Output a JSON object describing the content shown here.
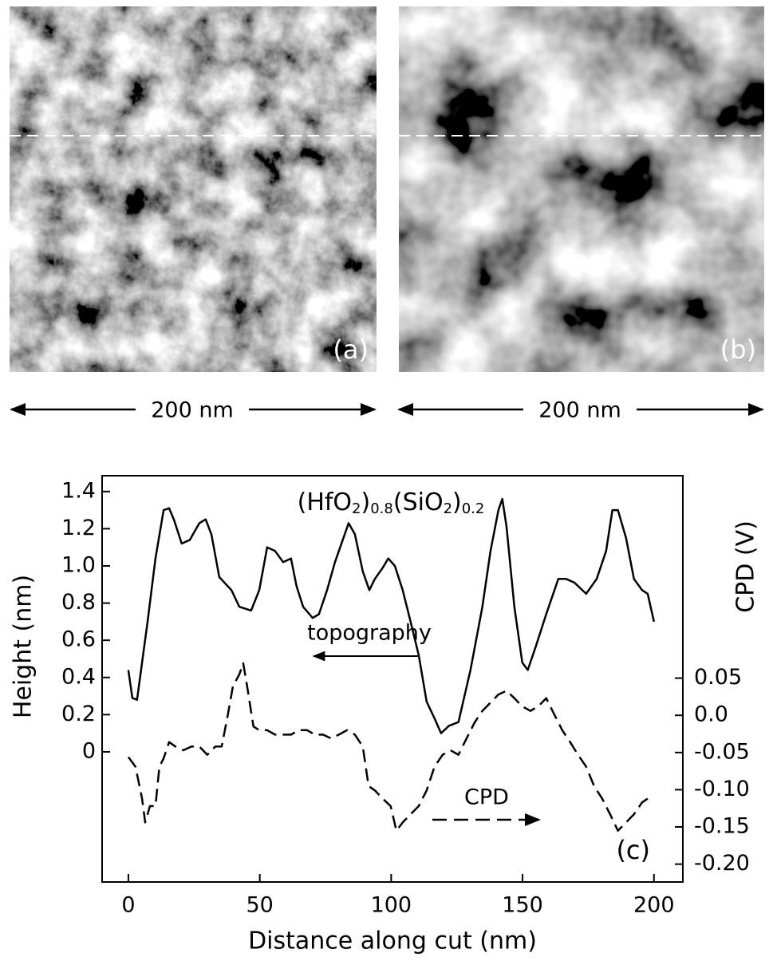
{
  "panels": [
    {
      "label": "(a)",
      "scale": "200 nm"
    },
    {
      "label": "(b)",
      "scale": "200 nm"
    }
  ],
  "chart_data": {
    "type": "line",
    "formula": [
      "(HfO",
      "2",
      ")",
      "0.8",
      "(SiO",
      "2",
      ")",
      "0.2"
    ],
    "panel_label": "(c)",
    "xlabel": "Distance along cut (nm)",
    "ylabel": "Height (nm)",
    "y2label": "CPD (V)",
    "xlim": [
      -10,
      211
    ],
    "xticks": [
      0,
      50,
      100,
      150,
      200
    ],
    "ylim": [
      -0.7,
      1.485
    ],
    "yticks": [
      0,
      0.2,
      0.4,
      0.6,
      0.8,
      {
        "value": 1.0,
        "label": "1.0"
      },
      1.2,
      1.4
    ],
    "y2lim": [
      -0.224,
      0.322
    ],
    "y2ticks": [
      {
        "value": -0.2,
        "label": "-0.20"
      },
      -0.15,
      {
        "value": -0.1,
        "label": "-0.10"
      },
      -0.05,
      {
        "value": 0,
        "label": "0.0"
      },
      0.05
    ],
    "series": [
      {
        "name": "topography",
        "color": "#000000",
        "style": "solid",
        "x": [
          0,
          1.5,
          3.3,
          5.2,
          7.3,
          10.3,
          13.4,
          15.5,
          17.3,
          20.3,
          23.4,
          27.0,
          29.4,
          31.6,
          34.6,
          39.2,
          42.2,
          46.7,
          49.8,
          52.8,
          55.8,
          58.9,
          61.9,
          64.0,
          66.5,
          70.1,
          72.5,
          75.6,
          78.6,
          83.8,
          86.2,
          89.2,
          91.7,
          93.8,
          96.8,
          98.9,
          101.4,
          104.4,
          107.4,
          110.5,
          113.5,
          116.5,
          119.0,
          122.0,
          125.6,
          130.2,
          134.7,
          137.8,
          140.8,
          142.3,
          143.9,
          146.9,
          149.9,
          152.0,
          155.1,
          159.0,
          163.6,
          166.6,
          169.7,
          174.2,
          178.2,
          181.8,
          184.2,
          186.3,
          189.4,
          192.4,
          195.5,
          197.6,
          200.0
        ],
        "values": [
          0.44,
          0.29,
          0.28,
          0.48,
          0.7,
          1.04,
          1.3,
          1.31,
          1.25,
          1.12,
          1.14,
          1.23,
          1.25,
          1.17,
          0.94,
          0.87,
          0.78,
          0.76,
          0.87,
          1.1,
          1.08,
          1.02,
          1.04,
          0.89,
          0.78,
          0.72,
          0.74,
          0.87,
          1.02,
          1.23,
          1.17,
          0.97,
          0.87,
          0.93,
          0.99,
          1.04,
          1.0,
          0.87,
          0.7,
          0.52,
          0.27,
          0.18,
          0.1,
          0.14,
          0.16,
          0.44,
          0.78,
          1.08,
          1.3,
          1.36,
          1.21,
          0.78,
          0.48,
          0.44,
          0.57,
          0.74,
          0.93,
          0.93,
          0.91,
          0.85,
          0.93,
          1.08,
          1.3,
          1.3,
          1.15,
          0.93,
          0.87,
          0.85,
          0.7
        ]
      },
      {
        "name": "CPD",
        "color": "#000000",
        "style": "dashed",
        "axis": "y2",
        "x": [
          0,
          2.7,
          5.2,
          6.4,
          8.2,
          10.3,
          11.8,
          13.4,
          15.5,
          17.9,
          20.9,
          24.0,
          27.0,
          30.0,
          33.1,
          35.5,
          37.6,
          39.8,
          42.2,
          43.7,
          45.2,
          47.6,
          49.8,
          52.8,
          55.8,
          58.9,
          61.9,
          64.9,
          68.0,
          71.0,
          74.1,
          77.1,
          80.1,
          83.2,
          86.2,
          89.2,
          91.4,
          93.8,
          96.8,
          99.8,
          102.0,
          104.4,
          107.4,
          110.5,
          113.5,
          116.5,
          119.6,
          122.6,
          125.6,
          128.7,
          131.7,
          134.7,
          137.8,
          140.8,
          143.9,
          146.9,
          149.9,
          153.0,
          156.0,
          159.0,
          162.1,
          165.1,
          168.1,
          171.1,
          174.2,
          177.2,
          180.3,
          183.3,
          186.3,
          189.4,
          192.4,
          195.5,
          197.6
        ],
        "values": [
          -0.056,
          -0.069,
          -0.112,
          -0.144,
          -0.122,
          -0.122,
          -0.069,
          -0.058,
          -0.036,
          -0.042,
          -0.047,
          -0.042,
          -0.042,
          -0.053,
          -0.042,
          -0.042,
          -0.004,
          0.039,
          0.055,
          0.07,
          0.039,
          -0.015,
          -0.02,
          -0.02,
          -0.026,
          -0.026,
          -0.026,
          -0.02,
          -0.02,
          -0.026,
          -0.026,
          -0.031,
          -0.026,
          -0.02,
          -0.026,
          -0.042,
          -0.095,
          -0.101,
          -0.112,
          -0.122,
          -0.155,
          -0.144,
          -0.133,
          -0.122,
          -0.101,
          -0.069,
          -0.053,
          -0.047,
          -0.053,
          -0.031,
          -0.01,
          0.006,
          0.017,
          0.028,
          0.033,
          0.023,
          0.012,
          0.006,
          0.012,
          0.023,
          0.001,
          -0.02,
          -0.036,
          -0.053,
          -0.069,
          -0.095,
          -0.112,
          -0.133,
          -0.155,
          -0.144,
          -0.133,
          -0.117,
          -0.112
        ]
      }
    ]
  }
}
